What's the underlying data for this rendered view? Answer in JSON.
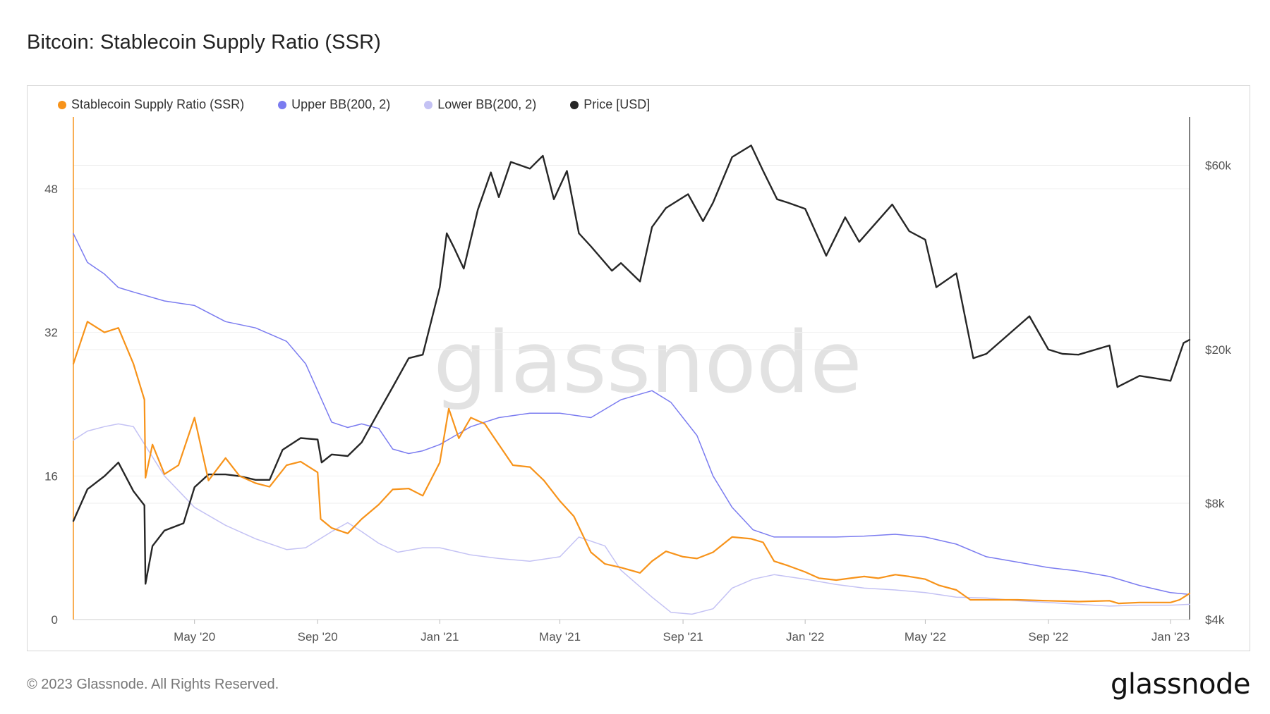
{
  "title": "Bitcoin: Stablecoin Supply Ratio (SSR)",
  "footer": {
    "copyright": "© 2023 Glassnode. All Rights Reserved.",
    "brand": "glassnode"
  },
  "watermark": "glassnode",
  "chart_data": {
    "type": "line",
    "legend_position": "top-left",
    "legend": [
      {
        "label": "Stablecoin Supply Ratio (SSR)",
        "color": "#f7931a"
      },
      {
        "label": "Upper BB(200, 2)",
        "color": "#7b7cf0"
      },
      {
        "label": "Lower BB(200, 2)",
        "color": "#c4c2f4"
      },
      {
        "label": "Price [USD]",
        "color": "#262626"
      }
    ],
    "x_range": [
      "2020-01-01",
      "2023-01-20"
    ],
    "x_ticks": [
      {
        "label": "May '20",
        "date": "2020-05-01"
      },
      {
        "label": "Sep '20",
        "date": "2020-09-01"
      },
      {
        "label": "Jan '21",
        "date": "2021-01-01"
      },
      {
        "label": "May '21",
        "date": "2021-05-01"
      },
      {
        "label": "Sep '21",
        "date": "2021-09-01"
      },
      {
        "label": "Jan '22",
        "date": "2022-01-01"
      },
      {
        "label": "May '22",
        "date": "2022-05-01"
      },
      {
        "label": "Sep '22",
        "date": "2022-09-01"
      },
      {
        "label": "Jan '23",
        "date": "2023-01-01"
      }
    ],
    "y_left": {
      "scale": "linear",
      "range": [
        0,
        56
      ],
      "ticks": [
        0,
        16,
        32,
        48
      ],
      "tick_labels": [
        "0",
        "16",
        "32",
        "48"
      ]
    },
    "y_right": {
      "scale": "log",
      "range": [
        4000,
        80000
      ],
      "ticks": [
        4000,
        8000,
        20000,
        60000
      ],
      "tick_labels": [
        "$4k",
        "$8k",
        "$20k",
        "$60k"
      ]
    },
    "grid": true,
    "series": [
      {
        "name": "Stablecoin Supply Ratio (SSR)",
        "axis": "left",
        "color": "#f7931a",
        "x": [
          "2020-01-01",
          "2020-01-15",
          "2020-02-01",
          "2020-02-15",
          "2020-03-01",
          "2020-03-12",
          "2020-03-13",
          "2020-03-20",
          "2020-04-01",
          "2020-04-15",
          "2020-05-01",
          "2020-05-15",
          "2020-06-01",
          "2020-06-15",
          "2020-07-01",
          "2020-07-15",
          "2020-08-01",
          "2020-08-15",
          "2020-09-01",
          "2020-09-04",
          "2020-09-15",
          "2020-10-01",
          "2020-10-15",
          "2020-11-01",
          "2020-11-15",
          "2020-12-01",
          "2020-12-15",
          "2021-01-01",
          "2021-01-10",
          "2021-01-20",
          "2021-02-01",
          "2021-02-15",
          "2021-03-01",
          "2021-03-15",
          "2021-04-01",
          "2021-04-15",
          "2021-05-01",
          "2021-05-15",
          "2021-06-01",
          "2021-06-15",
          "2021-07-01",
          "2021-07-20",
          "2021-08-01",
          "2021-08-15",
          "2021-09-01",
          "2021-09-15",
          "2021-10-01",
          "2021-10-20",
          "2021-11-08",
          "2021-11-20",
          "2021-12-01",
          "2021-12-15",
          "2022-01-01",
          "2022-01-15",
          "2022-02-01",
          "2022-02-15",
          "2022-03-01",
          "2022-03-15",
          "2022-04-01",
          "2022-04-15",
          "2022-05-01",
          "2022-05-15",
          "2022-06-01",
          "2022-06-15",
          "2022-07-01",
          "2022-08-01",
          "2022-09-01",
          "2022-10-01",
          "2022-11-01",
          "2022-11-10",
          "2022-12-01",
          "2023-01-01",
          "2023-01-10",
          "2023-01-20"
        ],
        "y": [
          28.5,
          33.2,
          32.0,
          32.5,
          28.5,
          24.5,
          15.8,
          19.5,
          16.2,
          17.2,
          22.5,
          15.5,
          18.0,
          16.0,
          15.2,
          14.8,
          17.2,
          17.6,
          16.4,
          11.2,
          10.2,
          9.6,
          11.2,
          12.8,
          14.5,
          14.6,
          13.8,
          17.5,
          23.5,
          20.2,
          22.5,
          21.8,
          19.5,
          17.2,
          17.0,
          15.5,
          13.2,
          11.5,
          7.5,
          6.2,
          5.8,
          5.2,
          6.5,
          7.6,
          7.0,
          6.8,
          7.5,
          9.2,
          9.0,
          8.6,
          6.5,
          6.0,
          5.3,
          4.6,
          4.4,
          4.6,
          4.8,
          4.6,
          5.0,
          4.8,
          4.5,
          3.8,
          3.3,
          2.2,
          2.2,
          2.2,
          2.1,
          2.0,
          2.1,
          1.8,
          1.9,
          1.9,
          2.2,
          2.9
        ]
      },
      {
        "name": "Upper BB(200, 2)",
        "axis": "left",
        "color": "#7b7cf0",
        "x": [
          "2020-01-01",
          "2020-01-15",
          "2020-02-01",
          "2020-02-15",
          "2020-03-01",
          "2020-04-01",
          "2020-05-01",
          "2020-06-01",
          "2020-07-01",
          "2020-08-01",
          "2020-08-20",
          "2020-09-15",
          "2020-10-01",
          "2020-10-15",
          "2020-11-01",
          "2020-11-15",
          "2020-12-01",
          "2020-12-15",
          "2021-01-01",
          "2021-02-01",
          "2021-03-01",
          "2021-04-01",
          "2021-05-01",
          "2021-06-01",
          "2021-07-01",
          "2021-08-01",
          "2021-08-20",
          "2021-09-15",
          "2021-10-01",
          "2021-10-20",
          "2021-11-10",
          "2021-12-01",
          "2022-01-01",
          "2022-02-01",
          "2022-03-01",
          "2022-04-01",
          "2022-05-01",
          "2022-06-01",
          "2022-07-01",
          "2022-08-01",
          "2022-09-01",
          "2022-10-01",
          "2022-11-01",
          "2022-12-01",
          "2023-01-01",
          "2023-01-20"
        ],
        "y": [
          43.0,
          39.8,
          38.5,
          37.0,
          36.5,
          35.5,
          35.0,
          33.2,
          32.5,
          31.0,
          28.5,
          22.0,
          21.4,
          21.8,
          21.3,
          19.0,
          18.5,
          18.8,
          19.5,
          21.5,
          22.5,
          23.0,
          23.0,
          22.5,
          24.5,
          25.5,
          24.2,
          20.5,
          16.0,
          12.5,
          10.0,
          9.2,
          9.2,
          9.2,
          9.3,
          9.5,
          9.2,
          8.4,
          7.0,
          6.4,
          5.8,
          5.4,
          4.8,
          3.8,
          3.0,
          2.8
        ]
      },
      {
        "name": "Lower BB(200, 2)",
        "axis": "left",
        "color": "#c4c2f4",
        "x": [
          "2020-01-01",
          "2020-01-15",
          "2020-02-01",
          "2020-02-15",
          "2020-03-01",
          "2020-04-01",
          "2020-05-01",
          "2020-06-01",
          "2020-07-01",
          "2020-08-01",
          "2020-08-20",
          "2020-09-15",
          "2020-10-01",
          "2020-10-15",
          "2020-11-01",
          "2020-11-20",
          "2020-12-15",
          "2021-01-01",
          "2021-02-01",
          "2021-03-01",
          "2021-04-01",
          "2021-05-01",
          "2021-05-20",
          "2021-06-15",
          "2021-07-01",
          "2021-08-01",
          "2021-08-20",
          "2021-09-10",
          "2021-10-01",
          "2021-10-20",
          "2021-11-10",
          "2021-12-01",
          "2022-01-01",
          "2022-02-01",
          "2022-03-01",
          "2022-04-01",
          "2022-05-01",
          "2022-06-01",
          "2022-07-01",
          "2022-08-01",
          "2022-09-01",
          "2022-10-01",
          "2022-11-01",
          "2022-12-01",
          "2023-01-01",
          "2023-01-20"
        ],
        "y": [
          20.0,
          21.0,
          21.5,
          21.8,
          21.5,
          16.0,
          12.5,
          10.5,
          9.0,
          7.8,
          8.0,
          9.8,
          10.8,
          9.8,
          8.5,
          7.5,
          8.0,
          8.0,
          7.2,
          6.8,
          6.5,
          7.0,
          9.2,
          8.2,
          5.5,
          2.5,
          0.8,
          0.6,
          1.2,
          3.5,
          4.5,
          5.0,
          4.5,
          3.9,
          3.5,
          3.3,
          3.0,
          2.5,
          2.4,
          2.1,
          1.9,
          1.7,
          1.5,
          1.6,
          1.6,
          1.7
        ]
      },
      {
        "name": "Price [USD]",
        "axis": "right",
        "color": "#262626",
        "x": [
          "2020-01-01",
          "2020-01-15",
          "2020-02-01",
          "2020-02-15",
          "2020-03-01",
          "2020-03-12",
          "2020-03-13",
          "2020-03-20",
          "2020-04-01",
          "2020-04-20",
          "2020-05-01",
          "2020-05-15",
          "2020-06-01",
          "2020-06-15",
          "2020-07-01",
          "2020-07-15",
          "2020-07-28",
          "2020-08-15",
          "2020-09-01",
          "2020-09-05",
          "2020-09-15",
          "2020-10-01",
          "2020-10-15",
          "2020-11-01",
          "2020-11-15",
          "2020-12-01",
          "2020-12-15",
          "2021-01-01",
          "2021-01-08",
          "2021-01-15",
          "2021-01-25",
          "2021-02-08",
          "2021-02-21",
          "2021-03-01",
          "2021-03-13",
          "2021-04-01",
          "2021-04-14",
          "2021-04-25",
          "2021-05-08",
          "2021-05-20",
          "2021-06-01",
          "2021-06-22",
          "2021-07-01",
          "2021-07-20",
          "2021-08-01",
          "2021-08-15",
          "2021-09-06",
          "2021-09-21",
          "2021-10-01",
          "2021-10-20",
          "2021-11-08",
          "2021-11-20",
          "2021-12-04",
          "2021-12-15",
          "2022-01-01",
          "2022-01-22",
          "2022-02-10",
          "2022-02-24",
          "2022-03-29",
          "2022-04-15",
          "2022-05-01",
          "2022-05-12",
          "2022-06-01",
          "2022-06-18",
          "2022-07-01",
          "2022-08-13",
          "2022-09-01",
          "2022-09-15",
          "2022-10-01",
          "2022-11-01",
          "2022-11-09",
          "2022-12-01",
          "2022-12-20",
          "2023-01-01",
          "2023-01-14",
          "2023-01-20"
        ],
        "y": [
          7200,
          8700,
          9400,
          10200,
          8600,
          7900,
          4950,
          6200,
          6800,
          7100,
          8800,
          9500,
          9500,
          9400,
          9200,
          9200,
          11000,
          11800,
          11700,
          10200,
          10700,
          10600,
          11500,
          13800,
          16000,
          19000,
          19400,
          29000,
          40000,
          36800,
          32400,
          46000,
          57500,
          49600,
          61200,
          58800,
          63500,
          49000,
          58000,
          40000,
          37000,
          32000,
          33500,
          30000,
          41500,
          46500,
          50500,
          43000,
          48000,
          63000,
          67500,
          58000,
          49000,
          48000,
          46300,
          35000,
          44000,
          38000,
          47500,
          40500,
          38500,
          29000,
          31500,
          19000,
          19500,
          24400,
          20000,
          19500,
          19400,
          20500,
          16000,
          17100,
          16800,
          16600,
          20800,
          21200
        ]
      }
    ]
  }
}
